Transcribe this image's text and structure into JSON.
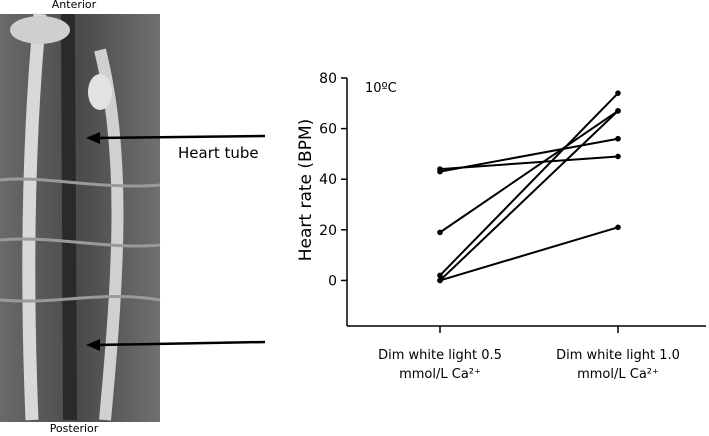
{
  "figure": {
    "anterior_label": "Anterior",
    "posterior_label": "Posterior",
    "heart_tube_label": "Heart tube"
  },
  "chart_data": {
    "type": "line",
    "ylabel": "Heart rate (BPM)",
    "annotation": "10ºC",
    "categories": [
      "Dim white light 0.5 mmol/L Ca²⁺",
      "Dim white light 1.0 mmol/L Ca²⁺"
    ],
    "series": [
      {
        "color": "#000000",
        "values": [
          44,
          49
        ]
      },
      {
        "color": "#000000",
        "values": [
          43,
          56
        ]
      },
      {
        "color": "#000000",
        "values": [
          19,
          67
        ]
      },
      {
        "color": "#000000",
        "values": [
          2,
          74
        ]
      },
      {
        "color": "#000000",
        "values": [
          0,
          67
        ]
      },
      {
        "color": "#000000",
        "values": [
          0,
          21
        ]
      }
    ],
    "ylim": [
      -18,
      80
    ],
    "yticks": [
      0,
      20,
      40,
      60,
      80
    ]
  }
}
